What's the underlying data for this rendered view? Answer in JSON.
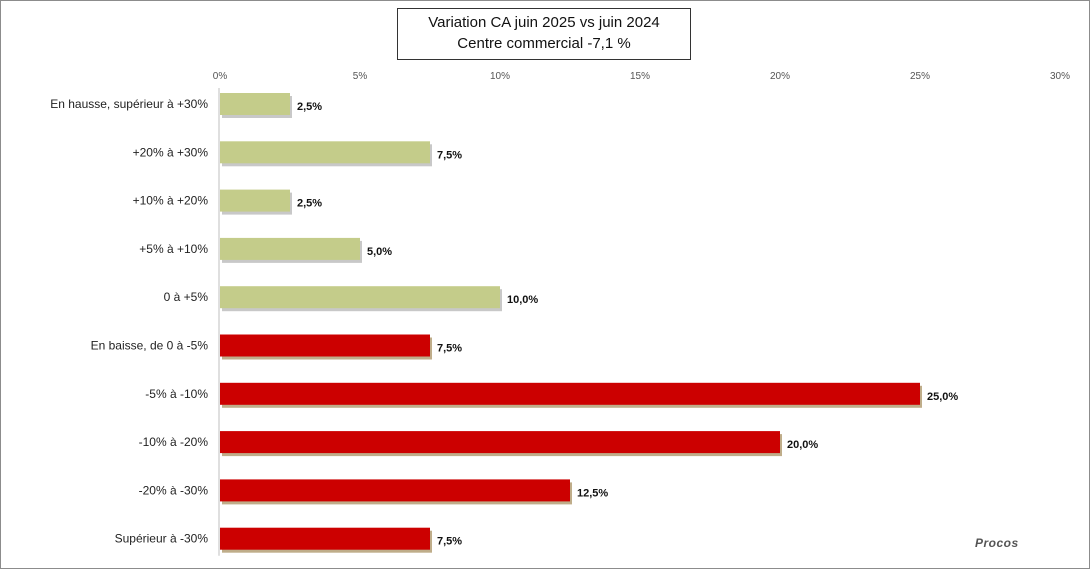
{
  "chart_data": {
    "type": "bar",
    "orientation": "horizontal",
    "title": "Variation CA juin 2025 vs juin 2024",
    "subtitle": "Centre commercial  -7,1 %",
    "categories": [
      "En hausse, supérieur à +30%",
      "+20% à +30%",
      "+10% à +20%",
      "+5% à +10%",
      "0 à +5%",
      "En baisse, de 0 à -5%",
      "-5% à -10%",
      "-10% à -20%",
      "-20% à -30%",
      "Supérieur à -30%"
    ],
    "values": [
      2.5,
      7.5,
      2.5,
      5.0,
      10.0,
      7.5,
      25.0,
      20.0,
      12.5,
      7.5
    ],
    "value_labels": [
      "2,5%",
      "7,5%",
      "2,5%",
      "5,0%",
      "10,0%",
      "7,5%",
      "25,0%",
      "20,0%",
      "12,5%",
      "7,5%"
    ],
    "bar_colors": [
      "#c4cc8a",
      "#c4cc8a",
      "#c4cc8a",
      "#c4cc8a",
      "#c4cc8a",
      "#cc0000",
      "#cc0000",
      "#cc0000",
      "#cc0000",
      "#cc0000"
    ],
    "xlim": [
      0,
      30
    ],
    "x_ticks": [
      0,
      5,
      10,
      15,
      20,
      25,
      30
    ],
    "x_tick_labels": [
      "0%",
      "5%",
      "10%",
      "15%",
      "20%",
      "25%",
      "30%"
    ],
    "x_axis_position": "top",
    "grid": false,
    "legend": "none"
  },
  "watermark": "Procos"
}
